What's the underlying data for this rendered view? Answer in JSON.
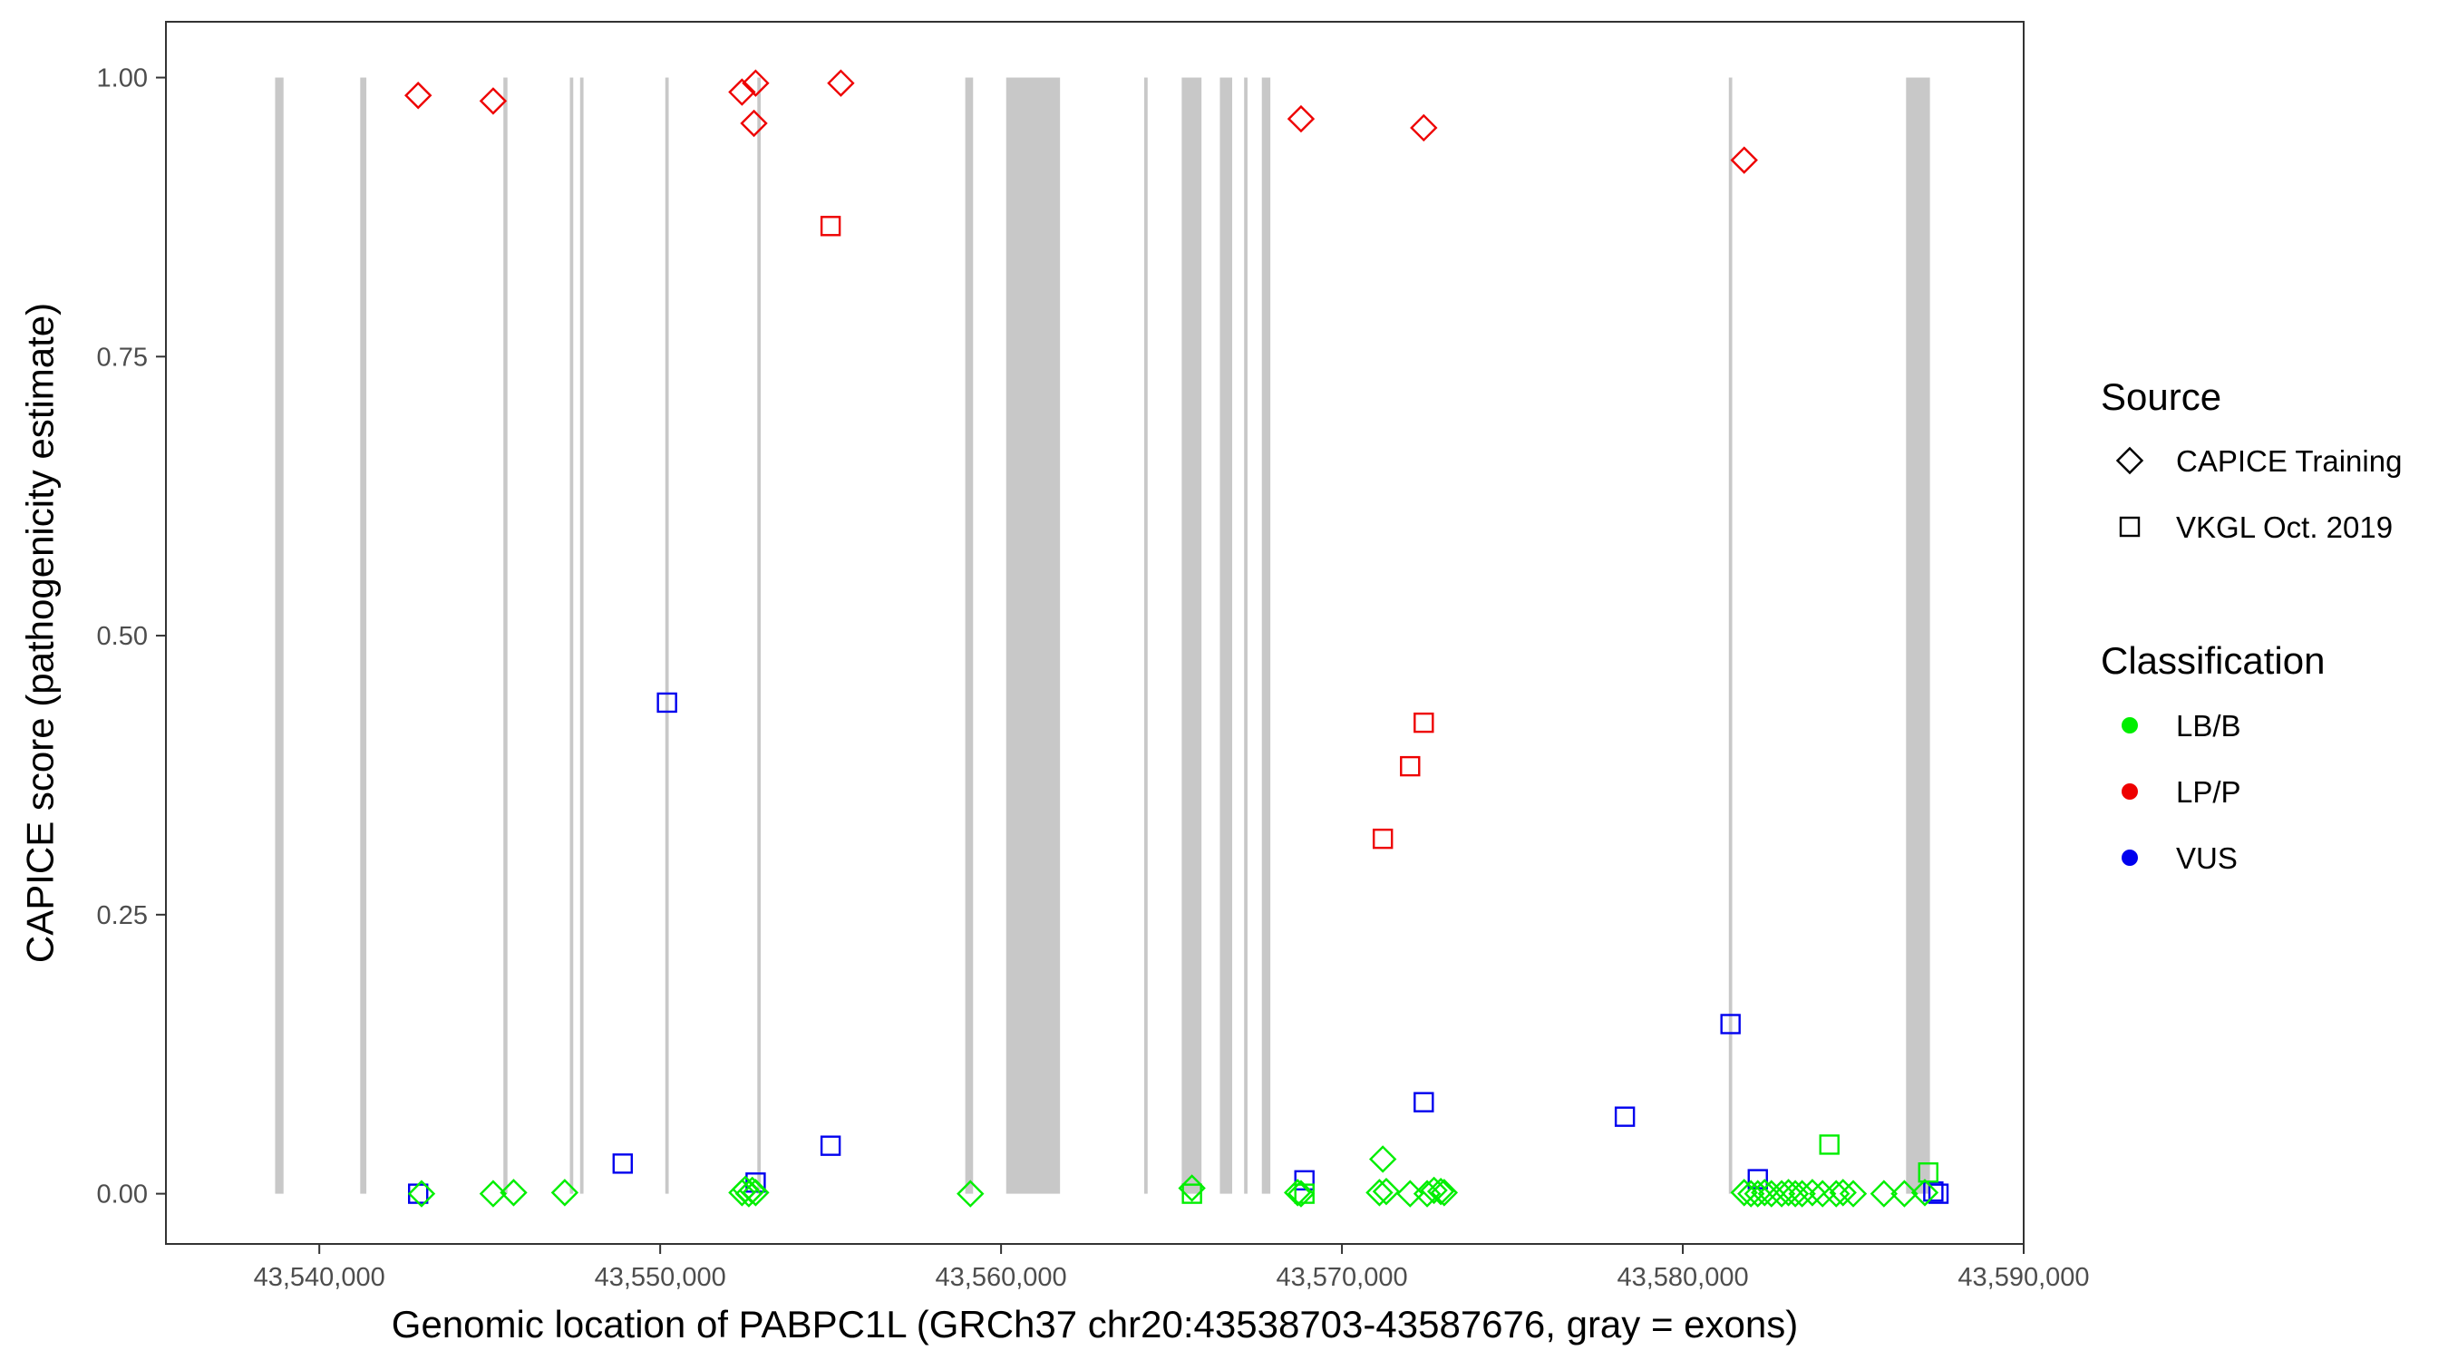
{
  "chart_data": {
    "type": "scatter",
    "xlabel": "Genomic location of PABPC1L (GRCh37 chr20:43538703-43587676, gray = exons)",
    "ylabel": "CAPICE score (pathogenicity estimate)",
    "xlim": [
      43535500,
      43590000
    ],
    "ylim": [
      -0.045,
      1.05
    ],
    "x_ticks": [
      43540000,
      43550000,
      43560000,
      43570000,
      43580000,
      43590000
    ],
    "x_tick_labels": [
      "43,540,000",
      "43,550,000",
      "43,560,000",
      "43,570,000",
      "43,580,000",
      "43,590,000"
    ],
    "y_ticks": [
      0,
      0.25,
      0.5,
      0.75,
      1.0
    ],
    "y_tick_labels": [
      "0.00",
      "0.25",
      "0.50",
      "0.75",
      "1.00"
    ],
    "grid": false,
    "exon_color": "#c8c8c8",
    "exons": [
      [
        43538703,
        43538950
      ],
      [
        43541200,
        43541380
      ],
      [
        43545400,
        43545520
      ],
      [
        43547350,
        43547450
      ],
      [
        43547650,
        43547750
      ],
      [
        43550150,
        43550250
      ],
      [
        43552850,
        43552950
      ],
      [
        43558950,
        43559180
      ],
      [
        43560150,
        43561730
      ],
      [
        43564200,
        43564300
      ],
      [
        43565300,
        43565880
      ],
      [
        43566420,
        43566780
      ],
      [
        43567130,
        43567230
      ],
      [
        43567650,
        43567900
      ],
      [
        43581350,
        43581450
      ],
      [
        43586550,
        43587250
      ]
    ],
    "legend": {
      "position": "right",
      "source_title": "Source",
      "source_items": [
        {
          "label": "CAPICE Training",
          "shape": "diamond"
        },
        {
          "label": "VKGL Oct. 2019",
          "shape": "square"
        }
      ],
      "classification_title": "Classification",
      "classification_items": [
        {
          "label": "LB/B",
          "color": "#00ee00"
        },
        {
          "label": "LP/P",
          "color": "#ee0000"
        },
        {
          "label": "VUS",
          "color": "#0000ee"
        }
      ]
    },
    "series": [
      {
        "source": "CAPICE Training",
        "classification": "LP/P",
        "shape": "diamond",
        "color": "#ee0000",
        "points": [
          [
            43542900,
            0.984
          ],
          [
            43545100,
            0.979
          ],
          [
            43552400,
            0.987
          ],
          [
            43552800,
            0.995
          ],
          [
            43552750,
            0.959
          ],
          [
            43555300,
            0.995
          ],
          [
            43568800,
            0.963
          ],
          [
            43572400,
            0.955
          ],
          [
            43581800,
            0.926
          ]
        ]
      },
      {
        "source": "VKGL Oct. 2019",
        "classification": "LP/P",
        "shape": "square",
        "color": "#ee0000",
        "points": [
          [
            43555000,
            0.867
          ],
          [
            43572400,
            0.422
          ],
          [
            43572000,
            0.383
          ],
          [
            43571200,
            0.318
          ]
        ]
      },
      {
        "source": "VKGL Oct. 2019",
        "classification": "VUS",
        "shape": "square",
        "color": "#0000ee",
        "points": [
          [
            43542900,
            0.0
          ],
          [
            43548900,
            0.027
          ],
          [
            43550200,
            0.44
          ],
          [
            43552800,
            0.01
          ],
          [
            43555000,
            0.043
          ],
          [
            43568900,
            0.012
          ],
          [
            43572400,
            0.082
          ],
          [
            43578300,
            0.069
          ],
          [
            43581400,
            0.152
          ],
          [
            43582200,
            0.013
          ],
          [
            43587350,
            0.002
          ],
          [
            43587500,
            0.0
          ]
        ]
      },
      {
        "source": "CAPICE Training",
        "classification": "LB/B",
        "shape": "diamond",
        "color": "#00ee00",
        "points": [
          [
            43543000,
            0.0
          ],
          [
            43545100,
            0.0
          ],
          [
            43545700,
            0.001
          ],
          [
            43547200,
            0.001
          ],
          [
            43552400,
            0.001
          ],
          [
            43552500,
            0.004
          ],
          [
            43552600,
            0.0
          ],
          [
            43552700,
            0.003
          ],
          [
            43552800,
            0.001
          ],
          [
            43559100,
            0.0
          ],
          [
            43565600,
            0.005
          ],
          [
            43568700,
            0.001
          ],
          [
            43568800,
            0.0
          ],
          [
            43571100,
            0.001
          ],
          [
            43571300,
            0.002
          ],
          [
            43571200,
            0.031
          ],
          [
            43572000,
            0.0
          ],
          [
            43572500,
            0.0
          ],
          [
            43572700,
            0.003
          ],
          [
            43572900,
            0.002
          ],
          [
            43573000,
            0.001
          ],
          [
            43581800,
            0.001
          ],
          [
            43582000,
            0.0
          ],
          [
            43582200,
            0.0
          ],
          [
            43582400,
            0.001
          ],
          [
            43582600,
            0.0
          ],
          [
            43582900,
            0.0
          ],
          [
            43583100,
            0.001
          ],
          [
            43583300,
            0.0
          ],
          [
            43583500,
            0.0
          ],
          [
            43583800,
            0.001
          ],
          [
            43584100,
            0.0
          ],
          [
            43584500,
            0.0
          ],
          [
            43584700,
            0.001
          ],
          [
            43585000,
            0.0
          ],
          [
            43585900,
            0.0
          ],
          [
            43586500,
            0.0
          ],
          [
            43587100,
            0.001
          ]
        ]
      },
      {
        "source": "VKGL Oct. 2019",
        "classification": "LB/B",
        "shape": "square",
        "color": "#00ee00",
        "points": [
          [
            43565600,
            0.0
          ],
          [
            43568900,
            0.0
          ],
          [
            43584300,
            0.044
          ],
          [
            43587200,
            0.019
          ]
        ]
      }
    ]
  }
}
